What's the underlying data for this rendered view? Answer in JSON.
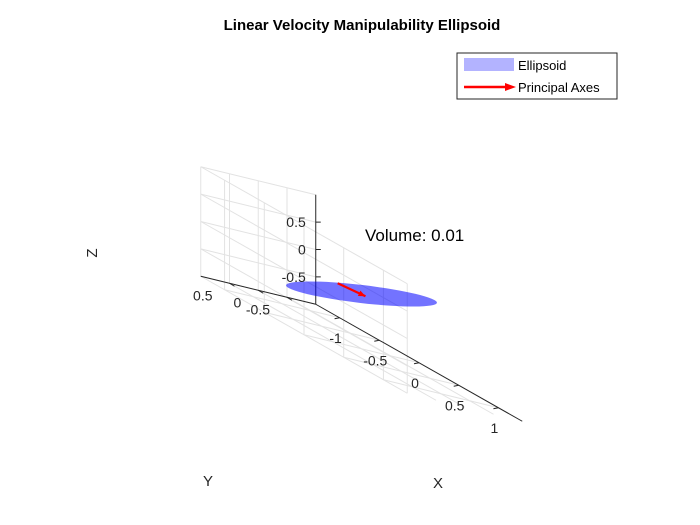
{
  "chart_data": {
    "type": "3d-surface",
    "title": "Linear Velocity Manipulability Ellipsoid",
    "xlabel": "X",
    "ylabel": "Y",
    "zlabel": "Z",
    "xlim": [
      -1.3,
      1.3
    ],
    "ylim": [
      -1,
      1
    ],
    "zlim": [
      -1,
      1
    ],
    "x_ticks": [
      "-1",
      "-0.5",
      "0",
      "0.5",
      "1"
    ],
    "y_ticks": [
      "-0.5",
      "0",
      "0.5"
    ],
    "z_ticks": [
      "-0.5",
      "0",
      "0.5"
    ],
    "grid": true,
    "legend_position": "top-right",
    "legend": [
      {
        "label": "Ellipsoid",
        "color": "#0000ff",
        "kind": "patch"
      },
      {
        "label": "Principal Axes",
        "color": "#ff0000",
        "kind": "arrow"
      }
    ],
    "ellipsoid": {
      "center": [
        0,
        0,
        0
      ],
      "color": "#0000ff",
      "opacity": 0.55
    },
    "principal_axes": {
      "color": "#ff0000",
      "arrow_from": [
        -0.3,
        0,
        -0.05
      ],
      "arrow_to": [
        0.05,
        0,
        0
      ]
    },
    "annotation": "Volume: 0.01"
  }
}
